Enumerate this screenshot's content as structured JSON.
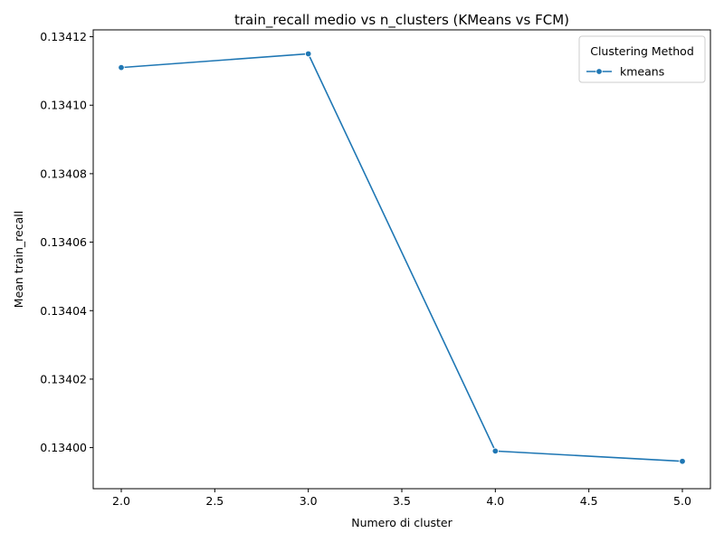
{
  "chart_data": {
    "type": "line",
    "title": "train_recall medio vs n_clusters (KMeans vs FCM)",
    "xlabel": "Numero di cluster",
    "ylabel": "Mean train_recall",
    "x": [
      2.0,
      3.0,
      4.0,
      5.0
    ],
    "xlim": [
      1.85,
      5.15
    ],
    "ylim": [
      0.133988,
      0.134122
    ],
    "xticks": [
      2.0,
      2.5,
      3.0,
      3.5,
      4.0,
      4.5,
      5.0
    ],
    "xtick_labels": [
      "2.0",
      "2.5",
      "3.0",
      "3.5",
      "4.0",
      "4.5",
      "5.0"
    ],
    "yticks": [
      0.134,
      0.13402,
      0.13404,
      0.13406,
      0.13408,
      0.1341,
      0.13412
    ],
    "ytick_labels": [
      "0.13400",
      "0.13402",
      "0.13404",
      "0.13406",
      "0.13408",
      "0.13410",
      "0.13412"
    ],
    "series": [
      {
        "name": "kmeans",
        "color": "#1f77b4",
        "marker": "circle",
        "values": [
          0.134111,
          0.134115,
          0.133999,
          0.133996
        ]
      }
    ],
    "legend": {
      "title": "Clustering Method",
      "position": "top-right"
    },
    "grid": false
  }
}
